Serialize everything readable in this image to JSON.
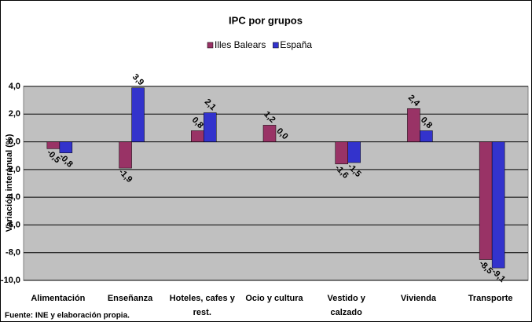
{
  "chart_data": {
    "type": "bar",
    "title": "IPC por grupos",
    "y_label": "Variación interanual (%)",
    "source": "Fuente: INE y elaboración propia.",
    "categories": [
      "Alimentación",
      "Enseñanza",
      "Hoteles, cafes y rest.",
      "Ocio y cultura",
      "Vestido y calzado",
      "Vivienda",
      "Transporte"
    ],
    "series": [
      {
        "name": "Illes Balears",
        "color": "#993366",
        "values": [
          -0.5,
          -1.9,
          0.8,
          1.2,
          -1.6,
          2.4,
          -8.5
        ],
        "value_labels": [
          "-0,5",
          "-1,9",
          "0,8",
          "1,2",
          "-1,6",
          "2,4",
          "-8,5"
        ]
      },
      {
        "name": "España",
        "color": "#3333cc",
        "values": [
          -0.8,
          3.9,
          2.1,
          0.0,
          -1.5,
          0.8,
          -9.1
        ],
        "value_labels": [
          "-0,8",
          "3,9",
          "2,1",
          "0,0",
          "-1,5",
          "0,8",
          "-9,1"
        ]
      }
    ],
    "ylim": [
      -10,
      4
    ],
    "yticks": [
      {
        "value": 4,
        "label": "4,0"
      },
      {
        "value": 2,
        "label": "2,0"
      },
      {
        "value": 0,
        "label": "0,0"
      },
      {
        "value": -2,
        "label": "-2,0"
      },
      {
        "value": -4,
        "label": "-4,0"
      },
      {
        "value": -6,
        "label": "-6,0"
      },
      {
        "value": -8,
        "label": "-8,0"
      },
      {
        "value": -10,
        "label": "-10,0"
      }
    ],
    "grid": true,
    "legend": "top"
  }
}
